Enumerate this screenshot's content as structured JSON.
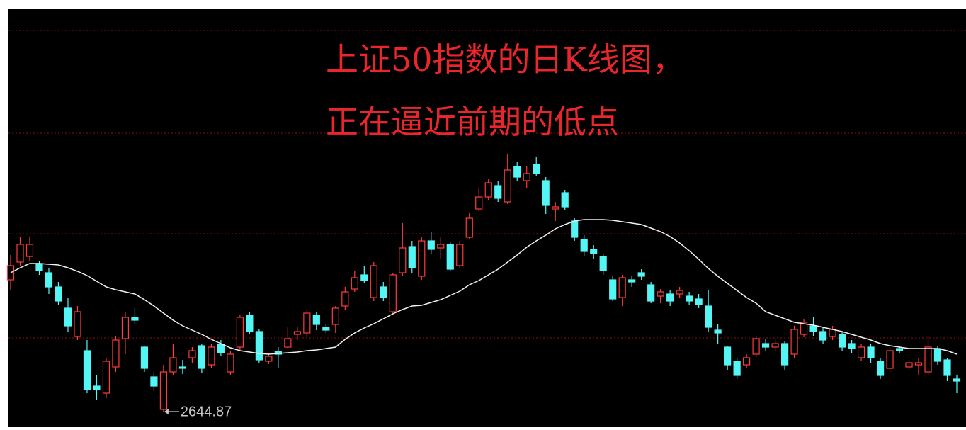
{
  "chart_data": {
    "type": "candlestick",
    "title_lines": [
      "上证50指数的日K线图，",
      "正在逼近前期的低点"
    ],
    "ylim": [
      2626,
      3214
    ],
    "yticks": [
      2749,
      2896,
      3038,
      3183
    ],
    "grid": true,
    "up_color": "#ff3b3b",
    "down_color": "#54f5f5",
    "grid_color": "#8c1010",
    "low_index": 16,
    "open": [
      2831,
      2856,
      2864,
      2854,
      2841,
      2821,
      2791,
      2751,
      2731,
      2681,
      2671,
      2708,
      2748,
      2778,
      2736,
      2694,
      2648,
      2701,
      2708,
      2721,
      2738,
      2711,
      2740,
      2701,
      2736,
      2781,
      2758,
      2716,
      2730,
      2736,
      2754,
      2756,
      2781,
      2764,
      2768,
      2794,
      2818,
      2838,
      2806,
      2821,
      2786,
      2841,
      2878,
      2836,
      2886,
      2876,
      2881,
      2851,
      2891,
      2931,
      2948,
      2964,
      2941,
      2991,
      2971,
      2994,
      2971,
      2931,
      2954,
      2914,
      2888,
      2874,
      2864,
      2831,
      2806,
      2831,
      2841,
      2824,
      2808,
      2811,
      2811,
      2808,
      2804,
      2794,
      2760,
      2736,
      2716,
      2711,
      2726,
      2741,
      2736,
      2741,
      2726,
      2754,
      2766,
      2758,
      2751,
      2754,
      2741,
      2721,
      2736,
      2716,
      2706,
      2734,
      2708,
      2711,
      2701,
      2734,
      2718,
      2691
    ],
    "close": [
      2851,
      2881,
      2881,
      2844,
      2821,
      2801,
      2766,
      2786,
      2676,
      2676,
      2716,
      2746,
      2778,
      2774,
      2706,
      2681,
      2701,
      2721,
      2706,
      2731,
      2706,
      2736,
      2728,
      2726,
      2778,
      2758,
      2718,
      2723,
      2726,
      2748,
      2758,
      2784,
      2768,
      2760,
      2791,
      2814,
      2834,
      2830,
      2851,
      2806,
      2838,
      2876,
      2848,
      2886,
      2874,
      2881,
      2846,
      2881,
      2918,
      2948,
      2968,
      2946,
      2986,
      2976,
      2981,
      2981,
      2936,
      2934,
      2934,
      2891,
      2871,
      2868,
      2844,
      2804,
      2834,
      2828,
      2836,
      2801,
      2814,
      2801,
      2816,
      2801,
      2796,
      2764,
      2756,
      2711,
      2696,
      2721,
      2748,
      2736,
      2741,
      2711,
      2761,
      2771,
      2758,
      2746,
      2761,
      2736,
      2734,
      2736,
      2721,
      2696,
      2731,
      2731,
      2714,
      2714,
      2736,
      2716,
      2696,
      2688
    ],
    "high": [
      2866,
      2891,
      2891,
      2858,
      2848,
      2828,
      2806,
      2794,
      2746,
      2696,
      2721,
      2751,
      2786,
      2791,
      2738,
      2701,
      2711,
      2741,
      2718,
      2736,
      2741,
      2741,
      2746,
      2731,
      2781,
      2786,
      2761,
      2728,
      2736,
      2764,
      2764,
      2788,
      2786,
      2768,
      2794,
      2821,
      2844,
      2851,
      2856,
      2828,
      2841,
      2911,
      2886,
      2891,
      2898,
      2891,
      2884,
      2886,
      2926,
      2961,
      2974,
      2971,
      3008,
      2998,
      2991,
      3004,
      2976,
      2941,
      2958,
      2918,
      2894,
      2880,
      2868,
      2836,
      2838,
      2836,
      2846,
      2828,
      2818,
      2816,
      2821,
      2814,
      2811,
      2816,
      2768,
      2738,
      2721,
      2726,
      2752,
      2748,
      2748,
      2744,
      2766,
      2776,
      2778,
      2764,
      2766,
      2758,
      2746,
      2741,
      2741,
      2721,
      2736,
      2738,
      2718,
      2721,
      2751,
      2738,
      2721,
      2696
    ],
    "low": [
      2816,
      2851,
      2858,
      2838,
      2811,
      2796,
      2758,
      2746,
      2671,
      2661,
      2664,
      2701,
      2726,
      2768,
      2701,
      2674,
      2644.87,
      2696,
      2698,
      2714,
      2700,
      2706,
      2724,
      2696,
      2731,
      2754,
      2714,
      2712,
      2706,
      2734,
      2746,
      2750,
      2760,
      2756,
      2756,
      2788,
      2814,
      2826,
      2801,
      2801,
      2781,
      2836,
      2841,
      2831,
      2868,
      2861,
      2844,
      2848,
      2888,
      2928,
      2944,
      2941,
      2938,
      2971,
      2961,
      2978,
      2924,
      2914,
      2930,
      2886,
      2864,
      2861,
      2838,
      2801,
      2794,
      2821,
      2831,
      2798,
      2798,
      2794,
      2806,
      2796,
      2791,
      2758,
      2741,
      2704,
      2691,
      2706,
      2721,
      2731,
      2731,
      2704,
      2721,
      2750,
      2751,
      2741,
      2746,
      2731,
      2728,
      2716,
      2714,
      2691,
      2701,
      2728,
      2704,
      2696,
      2696,
      2711,
      2688,
      2671
    ],
    "ma": {
      "color": "#f0f0f0",
      "values": [
        2841,
        2848,
        2854,
        2854,
        2853,
        2852,
        2848,
        2843,
        2837,
        2829,
        2821,
        2817,
        2814,
        2811,
        2803,
        2794,
        2784,
        2774,
        2766,
        2760,
        2754,
        2747,
        2741,
        2735,
        2731,
        2729,
        2727,
        2726,
        2727,
        2728,
        2729,
        2731,
        2732,
        2734,
        2736,
        2747,
        2756,
        2763,
        2769,
        2776,
        2783,
        2789,
        2794,
        2795,
        2799,
        2803,
        2809,
        2815,
        2824,
        2830,
        2838,
        2846,
        2856,
        2866,
        2877,
        2886,
        2894,
        2903,
        2909,
        2914,
        2916,
        2916,
        2916,
        2915,
        2913,
        2911,
        2909,
        2904,
        2899,
        2892,
        2883,
        2872,
        2860,
        2847,
        2836,
        2826,
        2816,
        2806,
        2798,
        2786,
        2781,
        2776,
        2771,
        2769,
        2767,
        2764,
        2761,
        2758,
        2754,
        2750,
        2746,
        2741,
        2738,
        2736,
        2734,
        2734,
        2734,
        2734,
        2731,
        2726
      ]
    }
  }
}
